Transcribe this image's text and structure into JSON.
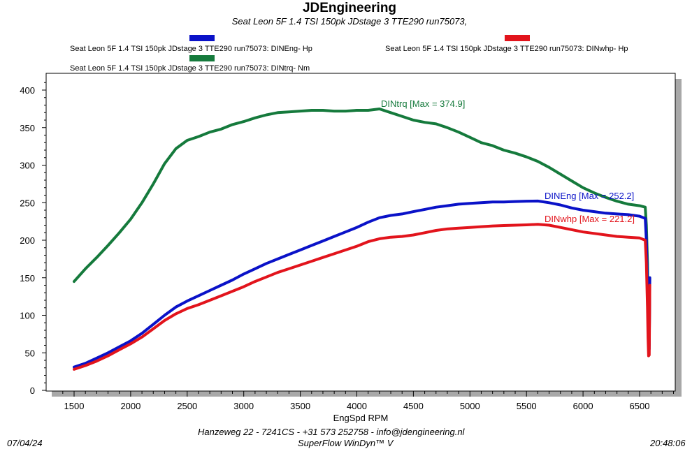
{
  "header": {
    "title": "JDEngineering",
    "subtitle": "Seat Leon 5F  1.4 TSI 150pk  JDstage 3   TTE290   run75073,"
  },
  "legend": [
    {
      "label": "Seat Leon 5F  1.4 TSI 150pk  JDstage 3   TTE290   run75073: DINEng- Hp",
      "color": "#0a12c8"
    },
    {
      "label": "Seat Leon 5F  1.4 TSI 150pk  JDstage 3   TTE290   run75073: DINwhp-  Hp",
      "color": "#e2141c"
    },
    {
      "label": "Seat Leon 5F  1.4 TSI 150pk  JDstage 3   TTE290   run75073: DINtrq- Nm",
      "color": "#157a3c"
    }
  ],
  "footer": {
    "address": "Hanzeweg 22 - 7241CS -  +31 573 252758  -   info@jdengineering.nl",
    "software": "SuperFlow WinDyn™ V",
    "date": "07/04/24",
    "time": "20:48:06"
  },
  "chart_data": {
    "type": "line",
    "xlabel": "EngSpd  RPM",
    "ylabel": "",
    "xlim": [
      1300,
      6900
    ],
    "ylim": [
      0,
      420
    ],
    "xticks": [
      1500,
      2000,
      2500,
      3000,
      3500,
      4000,
      4500,
      5000,
      5500,
      6000,
      6500
    ],
    "yticks": [
      0,
      50,
      100,
      150,
      200,
      250,
      300,
      350,
      400
    ],
    "grid": false,
    "series": [
      {
        "name": "DINtrq",
        "color": "#157a3c",
        "annotation": "DINtrq [Max = 374.9]",
        "x": [
          1500,
          1600,
          1700,
          1800,
          1900,
          2000,
          2100,
          2200,
          2300,
          2400,
          2500,
          2600,
          2700,
          2800,
          2900,
          3000,
          3100,
          3200,
          3300,
          3400,
          3500,
          3600,
          3700,
          3800,
          3900,
          4000,
          4100,
          4200,
          4300,
          4400,
          4500,
          4600,
          4700,
          4800,
          4900,
          5000,
          5100,
          5200,
          5300,
          5400,
          5500,
          5600,
          5700,
          5800,
          5900,
          6000,
          6100,
          6200,
          6300,
          6400,
          6500,
          6550,
          6560,
          6570,
          6575,
          6580,
          6585,
          6590
        ],
        "y": [
          145,
          162,
          177,
          193,
          210,
          228,
          250,
          275,
          302,
          322,
          333,
          338,
          344,
          348,
          354,
          358,
          363,
          367,
          370,
          371,
          372,
          373,
          373,
          372,
          372,
          373,
          373,
          374.9,
          370,
          365,
          360,
          357,
          355,
          350,
          344,
          337,
          330,
          326,
          320,
          316,
          311,
          305,
          297,
          288,
          279,
          270,
          263,
          257,
          252,
          248,
          246,
          244,
          220,
          170,
          120,
          80,
          60,
          150
        ],
        "endpoint": 6590
      },
      {
        "name": "DINEng",
        "color": "#0a12c8",
        "annotation": "DINEng [Max = 252.2]",
        "x": [
          1500,
          1600,
          1700,
          1800,
          1900,
          2000,
          2100,
          2200,
          2300,
          2400,
          2500,
          2600,
          2700,
          2800,
          2900,
          3000,
          3100,
          3200,
          3300,
          3400,
          3500,
          3600,
          3700,
          3800,
          3900,
          4000,
          4100,
          4200,
          4300,
          4400,
          4500,
          4600,
          4700,
          4800,
          4900,
          5000,
          5100,
          5200,
          5300,
          5400,
          5500,
          5600,
          5700,
          5800,
          5900,
          6000,
          6100,
          6200,
          6300,
          6400,
          6500,
          6550,
          6560,
          6570,
          6575,
          6580,
          6585,
          6590
        ],
        "y": [
          31,
          36,
          43,
          50,
          58,
          66,
          76,
          88,
          100,
          111,
          119,
          126,
          133,
          140,
          147,
          155,
          162,
          169,
          175,
          181,
          187,
          193,
          199,
          205,
          211,
          217,
          224,
          230,
          233,
          235,
          238,
          241,
          244,
          246,
          248,
          249,
          250,
          251,
          251,
          251.5,
          252,
          252.2,
          250,
          247,
          243,
          240,
          238,
          236,
          235,
          234,
          232,
          229,
          200,
          140,
          90,
          60,
          55,
          150
        ],
        "endpoint": 6590
      },
      {
        "name": "DINwhp",
        "color": "#e2141c",
        "annotation": "DINwhp [Max = 221.2]",
        "x": [
          1500,
          1600,
          1700,
          1800,
          1900,
          2000,
          2100,
          2200,
          2300,
          2400,
          2500,
          2600,
          2700,
          2800,
          2900,
          3000,
          3100,
          3200,
          3300,
          3400,
          3500,
          3600,
          3700,
          3800,
          3900,
          4000,
          4100,
          4200,
          4300,
          4400,
          4500,
          4600,
          4700,
          4800,
          4900,
          5000,
          5100,
          5200,
          5300,
          5400,
          5500,
          5600,
          5700,
          5800,
          5900,
          6000,
          6100,
          6200,
          6300,
          6400,
          6500,
          6550,
          6560,
          6570,
          6575,
          6580,
          6585,
          6590
        ],
        "y": [
          28,
          33,
          39,
          46,
          54,
          62,
          71,
          82,
          93,
          102,
          109,
          114,
          120,
          126,
          132,
          138,
          145,
          151,
          157,
          162,
          167,
          172,
          177,
          182,
          187,
          192,
          198,
          202,
          204,
          205,
          207,
          210,
          213,
          215,
          216,
          217,
          218,
          219,
          219.5,
          220,
          220.5,
          221.2,
          220,
          217,
          214,
          211,
          209,
          207,
          205,
          204,
          203,
          200,
          170,
          110,
          70,
          46,
          47,
          140
        ],
        "endpoint": 6590
      }
    ]
  }
}
